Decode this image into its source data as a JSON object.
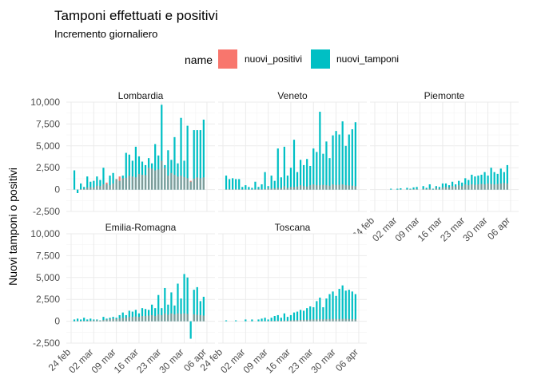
{
  "chart_data": {
    "type": "bar",
    "title": "Tamponi effettuati e positivi",
    "subtitle": "Incremento giornaliero",
    "ylabel": "Nuovi tamponi o positivi",
    "xlabel": "",
    "legend": {
      "title": "name",
      "placement": "top",
      "entries": [
        {
          "name": "nuovi_positivi",
          "color": "#F8766D"
        },
        {
          "name": "nuovi_tamponi",
          "color": "#00BFC4"
        }
      ]
    },
    "overlap_color": "#7F9B99",
    "start_date": "2020-02-24",
    "x_ticks": [
      "24 feb",
      "02 mar",
      "09 mar",
      "16 mar",
      "23 mar",
      "30 mar",
      "06 apr"
    ],
    "y_ticks": [
      "-2,500",
      "0",
      "2,500",
      "5,000",
      "7,500",
      "10,000"
    ],
    "ylim": [
      -2500,
      10000
    ],
    "grid": true,
    "panels": [
      {
        "name": "Lombardia",
        "tamponi": [
          2200,
          -400,
          700,
          300,
          1500,
          900,
          1000,
          1500,
          1100,
          2500,
          600,
          1600,
          1900,
          1200,
          1000,
          1600,
          4200,
          4000,
          3300,
          4900,
          3800,
          3200,
          2800,
          3600,
          3000,
          5200,
          3900,
          9700,
          2800,
          4500,
          3400,
          6000,
          3000,
          8200,
          3300,
          7300,
          900,
          6800,
          6800,
          6800,
          8000
        ],
        "positivi": [
          0,
          0,
          50,
          100,
          250,
          300,
          250,
          450,
          400,
          600,
          800,
          500,
          700,
          1200,
          1500,
          1300,
          1350,
          1600,
          1500,
          1400,
          1800,
          1700,
          1650,
          2500,
          2400,
          2200,
          2300,
          3300,
          2500,
          1600,
          1900,
          1700,
          1500,
          1600,
          1450,
          1300,
          1000,
          1250,
          1400,
          1300,
          1400
        ]
      },
      {
        "name": "Veneto",
        "tamponi": [
          1600,
          1200,
          1300,
          1200,
          1200,
          300,
          500,
          300,
          200,
          900,
          300,
          600,
          2000,
          400,
          1600,
          1000,
          4700,
          1400,
          4900,
          1600,
          2500,
          5700,
          2000,
          3400,
          2800,
          3500,
          2700,
          4700,
          4300,
          8900,
          4100,
          5500,
          3600,
          6200,
          6700,
          6300,
          7800,
          5000,
          6300,
          6900,
          7700
        ],
        "positivi": [
          30,
          40,
          30,
          40,
          30,
          30,
          20,
          30,
          20,
          40,
          100,
          30,
          50,
          200,
          120,
          150,
          200,
          190,
          400,
          200,
          320,
          300,
          350,
          500,
          400,
          350,
          500,
          600,
          500,
          500,
          550,
          500,
          450,
          600,
          520,
          550,
          600,
          500,
          480,
          450,
          400
        ]
      },
      {
        "name": "Piemonte",
        "tamponi": [
          0,
          0,
          0,
          0,
          100,
          0,
          100,
          150,
          0,
          200,
          100,
          250,
          300,
          0,
          400,
          200,
          600,
          100,
          400,
          300,
          700,
          700,
          500,
          900,
          600,
          1000,
          800,
          1300,
          1100,
          1700,
          1500,
          1600,
          1700,
          2000,
          1600,
          2500,
          2000,
          1800,
          2400,
          2000,
          2800
        ],
        "positivi": [
          0,
          0,
          0,
          0,
          0,
          0,
          10,
          20,
          0,
          30,
          40,
          50,
          80,
          0,
          100,
          60,
          150,
          30,
          200,
          100,
          250,
          300,
          250,
          400,
          350,
          500,
          400,
          600,
          500,
          600,
          550,
          600,
          650,
          600,
          700,
          650,
          600,
          650,
          700,
          750,
          700
        ]
      },
      {
        "name": "Emilia-Romagna",
        "tamponi": [
          200,
          300,
          200,
          400,
          200,
          300,
          200,
          200,
          100,
          500,
          300,
          400,
          500,
          400,
          700,
          1000,
          700,
          1200,
          1100,
          1300,
          900,
          1500,
          1400,
          1300,
          1900,
          1500,
          3000,
          1500,
          3800,
          1900,
          3300,
          1800,
          4300,
          2600,
          5400,
          5000,
          -2000,
          3600,
          3900,
          2300,
          2800
        ],
        "positivi": [
          20,
          30,
          40,
          50,
          60,
          80,
          100,
          120,
          80,
          150,
          200,
          250,
          300,
          250,
          350,
          400,
          400,
          500,
          500,
          550,
          500,
          600,
          600,
          650,
          700,
          600,
          800,
          700,
          900,
          750,
          900,
          800,
          900,
          850,
          900,
          850,
          0,
          800,
          750,
          700,
          650
        ]
      },
      {
        "name": "Toscana",
        "tamponi": [
          100,
          0,
          0,
          100,
          0,
          0,
          200,
          0,
          200,
          0,
          200,
          300,
          400,
          200,
          400,
          600,
          700,
          400,
          900,
          500,
          700,
          1000,
          1100,
          1300,
          1200,
          1500,
          1700,
          1600,
          2300,
          2700,
          1600,
          2600,
          3100,
          3400,
          2900,
          3700,
          4100,
          3500,
          3600,
          3400,
          3100
        ],
        "positivi": [
          0,
          0,
          0,
          0,
          0,
          0,
          5,
          0,
          10,
          0,
          10,
          20,
          30,
          15,
          40,
          50,
          60,
          40,
          80,
          60,
          100,
          120,
          130,
          150,
          160,
          180,
          200,
          210,
          220,
          230,
          220,
          240,
          260,
          270,
          250,
          260,
          280,
          270,
          260,
          240,
          230
        ]
      }
    ]
  }
}
